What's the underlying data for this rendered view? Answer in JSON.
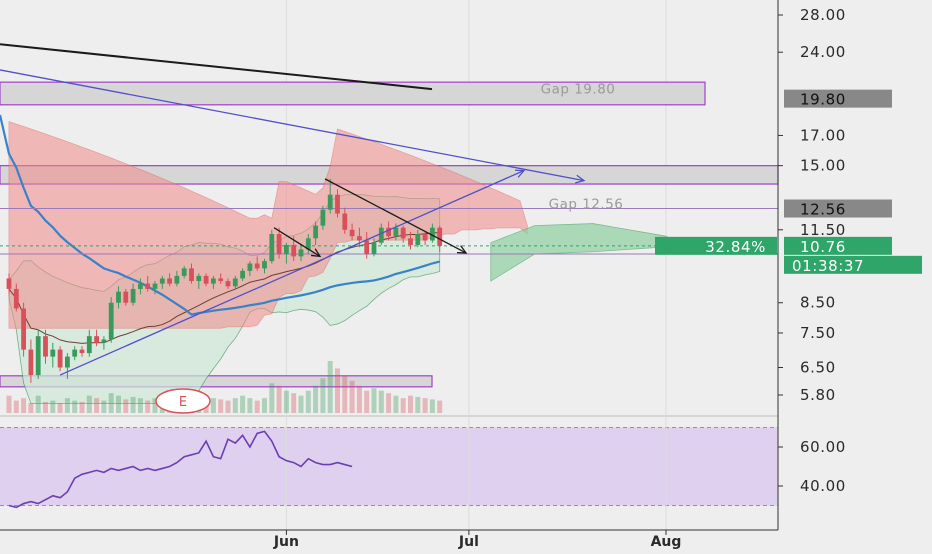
{
  "colors": {
    "background": "#eeeeee",
    "axis_text": "#2a2a2a",
    "candle_up": "#3a9a5b",
    "candle_down": "#d8505a",
    "cloud_bear": "#f28b8b",
    "cloud_bull": "#8fd0a0",
    "bollinger_fill": "#cfe8d8",
    "gap_box_fill": "#d6d6d6",
    "gap_box_stroke": "#a040c8",
    "rsi_band": "#dcc8ef",
    "rsi_line": "#6a3fb0",
    "ma_blue": "#3a82c8",
    "ma_brown": "#6a4030",
    "channel_line": "#5050c8",
    "last_price_tag": "#2fa56a",
    "level_tag": "#888888"
  },
  "chart_data": {
    "type": "line",
    "subtype": "candlestick with ichimoku cloud, bollinger bands, moving averages, volume, RSI",
    "price_axis": {
      "scale": "log",
      "range": [
        5.4,
        30
      ],
      "ticks": [
        "28.00",
        "24.00",
        "17.00",
        "15.00",
        "11.50",
        "8.50",
        "7.50",
        "6.50",
        "5.80"
      ],
      "tick_values": [
        28,
        24,
        17,
        15,
        11.5,
        8.5,
        7.5,
        6.5,
        5.8
      ]
    },
    "rsi_axis": {
      "range": [
        28,
        72
      ],
      "ticks": [
        "60.00",
        "40.00"
      ],
      "tick_values": [
        60,
        40
      ]
    },
    "time_axis": {
      "labels": [
        "Jun",
        "Jul",
        "Aug"
      ],
      "label_bars": [
        38,
        63,
        90
      ]
    },
    "price_tags": [
      {
        "label": "19.80",
        "value": 19.8,
        "style": "level"
      },
      {
        "label": "12.56",
        "value": 12.56,
        "style": "level"
      },
      {
        "label": "10.76",
        "value": 10.76,
        "style": "last"
      }
    ],
    "change_tag": "32.84%",
    "countdown_tag": "01:38:37",
    "annotations": [
      {
        "text": "Gap 19.80",
        "value": 19.8
      },
      {
        "text": "Gap 12.56",
        "value": 12.56
      }
    ],
    "gap_boxes": [
      {
        "low": 19.3,
        "high": 21.2
      },
      {
        "low": 13.9,
        "high": 15.0
      },
      {
        "low": 6.0,
        "high": 6.28
      }
    ],
    "horizontal_lines": [
      10.4,
      12.56
    ],
    "earnings_marker": "E",
    "candles": [
      {
        "o": 9.4,
        "h": 9.6,
        "l": 8.8,
        "c": 9.0
      },
      {
        "o": 9.0,
        "h": 9.2,
        "l": 8.2,
        "c": 8.3
      },
      {
        "o": 8.3,
        "h": 8.5,
        "l": 6.8,
        "c": 7.0
      },
      {
        "o": 7.0,
        "h": 7.3,
        "l": 6.1,
        "c": 6.3
      },
      {
        "o": 6.3,
        "h": 7.6,
        "l": 6.2,
        "c": 7.4
      },
      {
        "o": 7.4,
        "h": 7.6,
        "l": 6.6,
        "c": 6.8
      },
      {
        "o": 6.8,
        "h": 7.2,
        "l": 6.5,
        "c": 7.0
      },
      {
        "o": 7.0,
        "h": 7.1,
        "l": 6.4,
        "c": 6.5
      },
      {
        "o": 6.5,
        "h": 6.9,
        "l": 6.2,
        "c": 6.8
      },
      {
        "o": 6.8,
        "h": 7.1,
        "l": 6.7,
        "c": 7.0
      },
      {
        "o": 7.0,
        "h": 7.1,
        "l": 6.8,
        "c": 6.9
      },
      {
        "o": 6.9,
        "h": 7.6,
        "l": 6.8,
        "c": 7.4
      },
      {
        "o": 7.4,
        "h": 7.6,
        "l": 7.1,
        "c": 7.2
      },
      {
        "o": 7.2,
        "h": 7.4,
        "l": 7.0,
        "c": 7.3
      },
      {
        "o": 7.3,
        "h": 8.7,
        "l": 7.2,
        "c": 8.5
      },
      {
        "o": 8.5,
        "h": 9.1,
        "l": 8.3,
        "c": 8.9
      },
      {
        "o": 8.9,
        "h": 9.0,
        "l": 8.4,
        "c": 8.5
      },
      {
        "o": 8.5,
        "h": 9.2,
        "l": 8.4,
        "c": 9.0
      },
      {
        "o": 9.0,
        "h": 9.4,
        "l": 8.8,
        "c": 9.2
      },
      {
        "o": 9.2,
        "h": 9.5,
        "l": 8.9,
        "c": 9.0
      },
      {
        "o": 9.0,
        "h": 9.3,
        "l": 8.8,
        "c": 9.2
      },
      {
        "o": 9.2,
        "h": 9.5,
        "l": 9.0,
        "c": 9.4
      },
      {
        "o": 9.4,
        "h": 9.6,
        "l": 9.1,
        "c": 9.2
      },
      {
        "o": 9.2,
        "h": 9.7,
        "l": 9.1,
        "c": 9.5
      },
      {
        "o": 9.5,
        "h": 9.9,
        "l": 9.4,
        "c": 9.8
      },
      {
        "o": 9.8,
        "h": 10.0,
        "l": 9.2,
        "c": 9.3
      },
      {
        "o": 9.3,
        "h": 9.6,
        "l": 9.0,
        "c": 9.5
      },
      {
        "o": 9.5,
        "h": 9.6,
        "l": 9.1,
        "c": 9.2
      },
      {
        "o": 9.2,
        "h": 9.5,
        "l": 9.0,
        "c": 9.4
      },
      {
        "o": 9.4,
        "h": 9.6,
        "l": 9.2,
        "c": 9.3
      },
      {
        "o": 9.3,
        "h": 9.4,
        "l": 9.0,
        "c": 9.1
      },
      {
        "o": 9.1,
        "h": 9.5,
        "l": 9.0,
        "c": 9.4
      },
      {
        "o": 9.4,
        "h": 9.8,
        "l": 9.3,
        "c": 9.7
      },
      {
        "o": 9.7,
        "h": 10.1,
        "l": 9.5,
        "c": 10.0
      },
      {
        "o": 10.0,
        "h": 10.3,
        "l": 9.7,
        "c": 9.8
      },
      {
        "o": 9.8,
        "h": 10.2,
        "l": 9.6,
        "c": 10.1
      },
      {
        "o": 10.1,
        "h": 11.5,
        "l": 10.0,
        "c": 11.3
      },
      {
        "o": 11.3,
        "h": 11.6,
        "l": 10.2,
        "c": 10.4
      },
      {
        "o": 10.4,
        "h": 10.9,
        "l": 10.0,
        "c": 10.8
      },
      {
        "o": 10.8,
        "h": 11.2,
        "l": 10.1,
        "c": 10.3
      },
      {
        "o": 10.3,
        "h": 10.8,
        "l": 10.1,
        "c": 10.6
      },
      {
        "o": 10.6,
        "h": 11.3,
        "l": 10.4,
        "c": 11.1
      },
      {
        "o": 11.1,
        "h": 11.9,
        "l": 10.8,
        "c": 11.7
      },
      {
        "o": 11.7,
        "h": 12.7,
        "l": 11.5,
        "c": 12.5
      },
      {
        "o": 12.5,
        "h": 14.2,
        "l": 12.3,
        "c": 13.3
      },
      {
        "o": 13.3,
        "h": 13.6,
        "l": 12.1,
        "c": 12.3
      },
      {
        "o": 12.3,
        "h": 12.6,
        "l": 11.3,
        "c": 11.5
      },
      {
        "o": 11.5,
        "h": 11.8,
        "l": 11.0,
        "c": 11.2
      },
      {
        "o": 11.2,
        "h": 11.6,
        "l": 10.7,
        "c": 11.0
      },
      {
        "o": 11.0,
        "h": 11.4,
        "l": 10.2,
        "c": 10.4
      },
      {
        "o": 10.4,
        "h": 11.1,
        "l": 10.3,
        "c": 10.9
      },
      {
        "o": 10.9,
        "h": 11.8,
        "l": 10.8,
        "c": 11.6
      },
      {
        "o": 11.6,
        "h": 11.9,
        "l": 11.0,
        "c": 11.2
      },
      {
        "o": 11.2,
        "h": 11.8,
        "l": 11.0,
        "c": 11.6
      },
      {
        "o": 11.6,
        "h": 11.7,
        "l": 10.9,
        "c": 11.1
      },
      {
        "o": 11.1,
        "h": 11.4,
        "l": 10.6,
        "c": 10.8
      },
      {
        "o": 10.8,
        "h": 11.5,
        "l": 10.7,
        "c": 11.3
      },
      {
        "o": 11.3,
        "h": 11.4,
        "l": 10.8,
        "c": 11.0
      },
      {
        "o": 11.0,
        "h": 11.8,
        "l": 10.9,
        "c": 11.6
      },
      {
        "o": 11.6,
        "h": 11.7,
        "l": 10.5,
        "c": 10.76
      }
    ],
    "volume": [
      14,
      10,
      12,
      8,
      14,
      9,
      10,
      8,
      12,
      10,
      9,
      14,
      12,
      10,
      16,
      14,
      11,
      13,
      12,
      10,
      12,
      14,
      10,
      12,
      14,
      12,
      11,
      10,
      12,
      11,
      10,
      12,
      14,
      12,
      10,
      12,
      24,
      22,
      18,
      16,
      14,
      18,
      22,
      28,
      42,
      36,
      30,
      26,
      22,
      18,
      20,
      18,
      16,
      14,
      12,
      14,
      13,
      12,
      11,
      10
    ],
    "rsi": [
      30,
      29,
      31,
      32,
      31,
      33,
      35,
      34,
      37,
      44,
      46,
      47,
      48,
      47,
      49,
      48,
      49,
      50,
      48,
      49,
      48,
      49,
      50,
      52,
      55,
      56,
      57,
      63,
      55,
      54,
      64,
      62,
      66,
      60,
      67,
      68,
      63,
      55,
      53,
      52,
      50,
      54,
      52,
      51,
      51,
      52,
      51,
      50
    ]
  }
}
